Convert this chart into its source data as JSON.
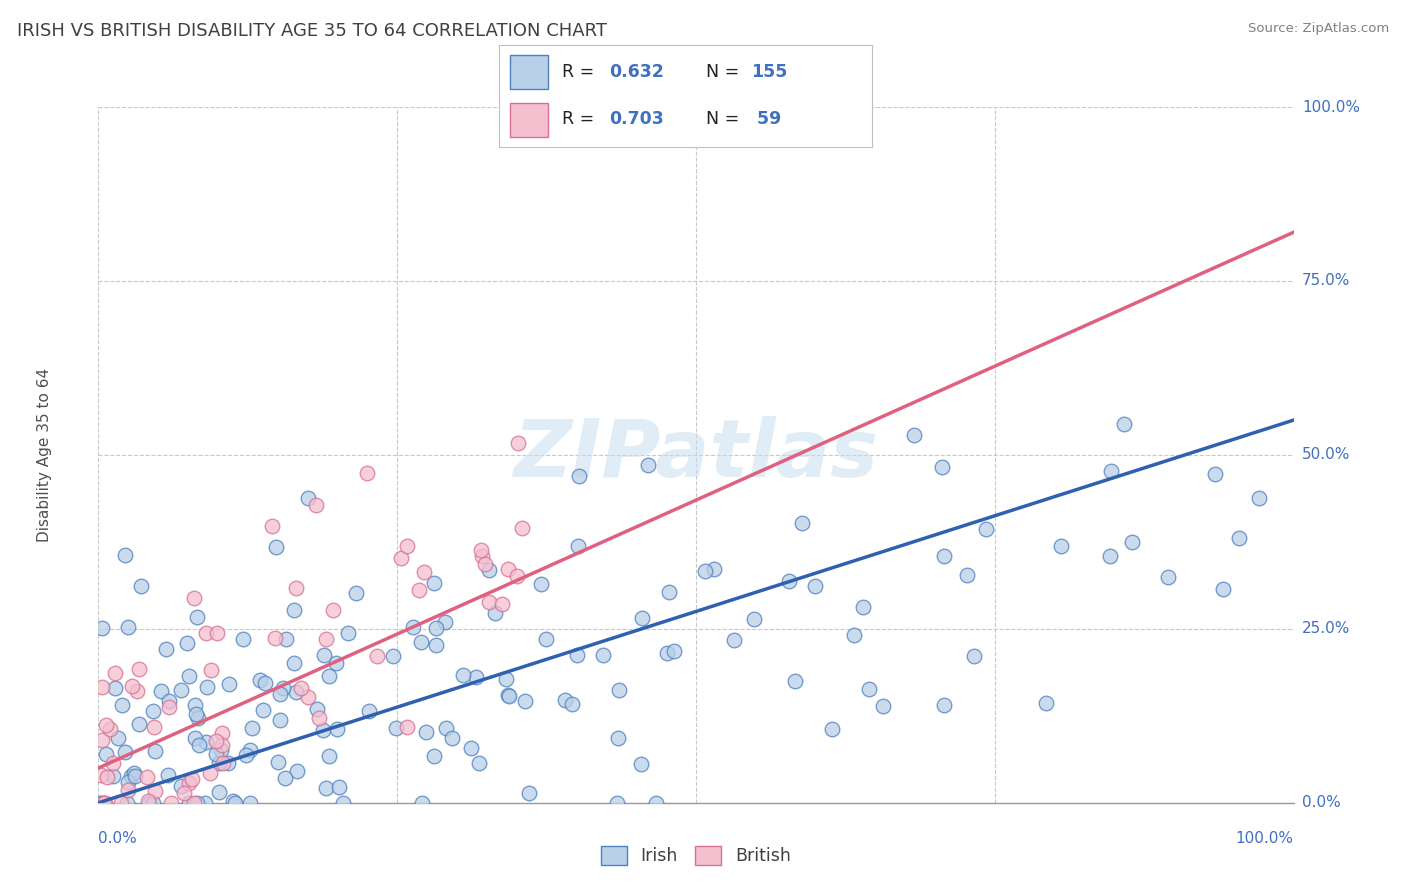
{
  "title": "IRISH VS BRITISH DISABILITY AGE 35 TO 64 CORRELATION CHART",
  "source": "Source: ZipAtlas.com",
  "ylabel": "Disability Age 35 to 64",
  "ytick_labels": [
    "0.0%",
    "25.0%",
    "50.0%",
    "75.0%",
    "100.0%"
  ],
  "ytick_values": [
    0,
    25,
    50,
    75,
    100
  ],
  "xtick_labels": [
    "0.0%",
    "100.0%"
  ],
  "xlim": [
    0,
    100
  ],
  "ylim": [
    0,
    100
  ],
  "irish_face_color": "#b8d0e8",
  "irish_edge_color": "#5080c0",
  "irish_line_color": "#3060b0",
  "british_face_color": "#f4c0d0",
  "british_edge_color": "#d87090",
  "british_line_color": "#e06080",
  "irish_R": 0.632,
  "irish_N": 155,
  "british_R": 0.703,
  "british_N": 59,
  "watermark": "ZIPatlas",
  "background_color": "#ffffff",
  "grid_color": "#c8c8c8",
  "title_color": "#404040",
  "title_fontsize": 13,
  "right_label_color": "#4070c0",
  "source_color": "#808080",
  "legend_text_color_rn": "#4070c0",
  "irish_line_y0": 0,
  "irish_line_y100": 55,
  "british_line_y0": 5,
  "british_line_y100": 82
}
